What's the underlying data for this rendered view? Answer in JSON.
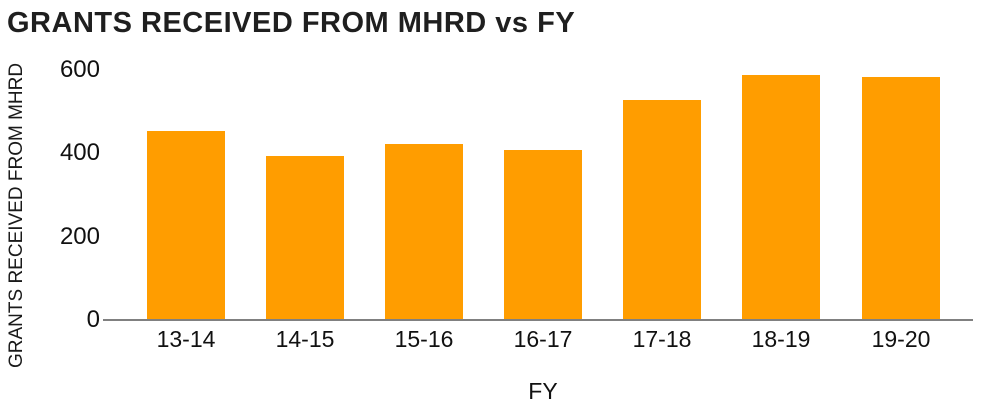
{
  "chart_data": {
    "type": "bar",
    "title": "GRANTS RECEIVED FROM MHRD vs FY",
    "xlabel": "FY",
    "ylabel": "GRANTS RECEIVED FROM MHRD",
    "categories": [
      "13-14",
      "14-15",
      "15-16",
      "16-17",
      "17-18",
      "18-19",
      "19-20"
    ],
    "values": [
      450,
      390,
      420,
      405,
      525,
      585,
      580
    ],
    "ylim": [
      0,
      600
    ],
    "yticks": [
      0,
      200,
      400,
      600
    ],
    "grid": false,
    "legend": "none",
    "colors": {
      "bar": "#FF9D00",
      "axis_line": "#808080",
      "text": "#111111",
      "title": "#1f1f1f",
      "background": "#ffffff"
    }
  }
}
